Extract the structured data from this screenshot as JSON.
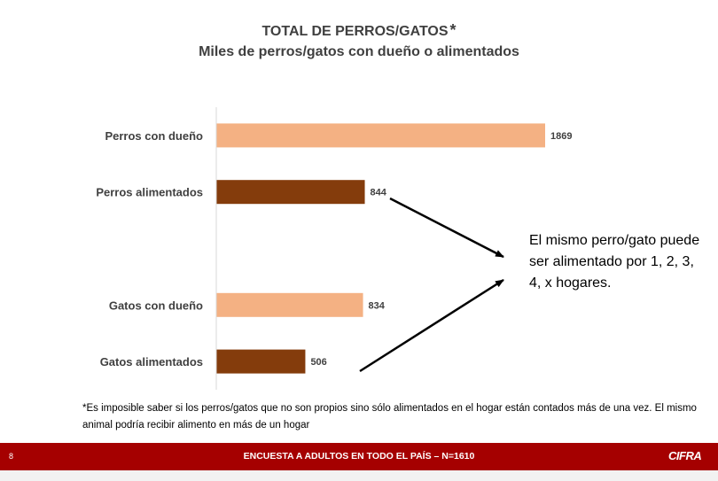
{
  "title": "TOTAL DE PERROS/GATOS",
  "title_mark": "*",
  "subtitle": "Miles de perros/gatos con dueño o alimentados",
  "chart_data": {
    "type": "bar",
    "orientation": "horizontal",
    "categories": [
      "Perros con dueño",
      "Perros alimentados",
      "",
      "Gatos con dueño",
      "Gatos alimentados"
    ],
    "values": [
      1869,
      844,
      null,
      834,
      506
    ],
    "bar_colors": [
      "#f4b183",
      "#843c0c",
      null,
      "#f4b183",
      "#843c0c"
    ],
    "value_labels": [
      "1869",
      "844",
      "",
      "834",
      "506"
    ],
    "xlim": [
      0,
      1869
    ],
    "grid": false,
    "legend": "none"
  },
  "annotation": "El mismo perro/gato puede ser alimentado por 1, 2, 3, 4, x hogares.",
  "footnote": "*Es imposible saber si los perros/gatos que no son propios sino sólo alimentados en el hogar están contados más de una vez. El mismo animal podría recibir alimento en más de un hogar",
  "footer": {
    "page_number": "8",
    "text": "ENCUESTA A ADULTOS EN TODO EL PAÍS – N=1610",
    "logo": "CIFRA",
    "color": "#a50000"
  }
}
